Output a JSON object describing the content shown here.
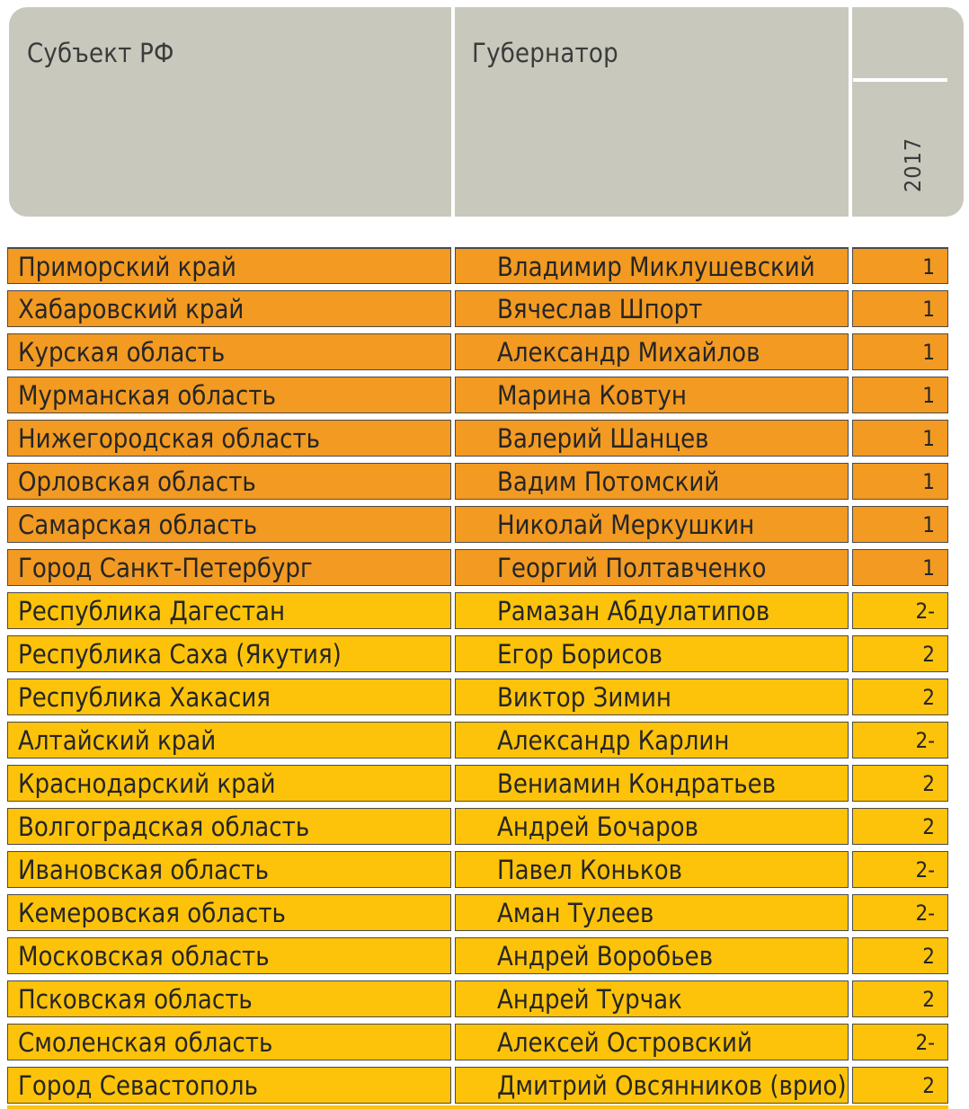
{
  "header": {
    "subject_label": "Субъект РФ",
    "governor_label": "Губернатор",
    "year_label": "2017"
  },
  "colors": {
    "header_bg": "#c8c9bc",
    "group1": "#f29a22",
    "group2": "#fdc30a"
  },
  "rows": [
    {
      "subject": "Приморский край",
      "governor": "Владимир Миклушевский",
      "score": "1",
      "group": "orange"
    },
    {
      "subject": "Хабаровский край",
      "governor": "Вячеслав Шпорт",
      "score": "1",
      "group": "orange"
    },
    {
      "subject": "Курская область",
      "governor": "Александр Михайлов",
      "score": "1",
      "group": "orange"
    },
    {
      "subject": "Мурманская область",
      "governor": "Марина Ковтун",
      "score": "1",
      "group": "orange"
    },
    {
      "subject": "Нижегородская область",
      "governor": "Валерий Шанцев",
      "score": "1",
      "group": "orange"
    },
    {
      "subject": "Орловская область",
      "governor": "Вадим Потомский",
      "score": "1",
      "group": "orange"
    },
    {
      "subject": "Самарская область",
      "governor": "Николай Меркушкин",
      "score": "1",
      "group": "orange"
    },
    {
      "subject": "Город Санкт-Петербург",
      "governor": "Георгий Полтавченко",
      "score": "1",
      "group": "orange"
    },
    {
      "subject": "Республика Дагестан",
      "governor": "Рамазан Абдулатипов",
      "score": "2-",
      "group": "yellow"
    },
    {
      "subject": "Республика Саха (Якутия)",
      "governor": "Егор Борисов",
      "score": "2",
      "group": "yellow"
    },
    {
      "subject": "Республика Хакасия",
      "governor": "Виктор Зимин",
      "score": "2",
      "group": "yellow"
    },
    {
      "subject": "Алтайский край",
      "governor": "Александр Карлин",
      "score": "2-",
      "group": "yellow"
    },
    {
      "subject": "Краснодарский край",
      "governor": "Вениамин Кондратьев",
      "score": "2",
      "group": "yellow"
    },
    {
      "subject": "Волгоградская область",
      "governor": "Андрей Бочаров",
      "score": "2",
      "group": "yellow"
    },
    {
      "subject": "Ивановская область",
      "governor": "Павел Коньков",
      "score": "2-",
      "group": "yellow"
    },
    {
      "subject": "Кемеровская область",
      "governor": "Аман Тулеев",
      "score": "2-",
      "group": "yellow"
    },
    {
      "subject": "Московская область",
      "governor": "Андрей Воробьев",
      "score": "2",
      "group": "yellow"
    },
    {
      "subject": "Псковская область",
      "governor": "Андрей Турчак",
      "score": "2",
      "group": "yellow"
    },
    {
      "subject": "Смоленская область",
      "governor": "Алексей Островский",
      "score": "2-",
      "group": "yellow"
    },
    {
      "subject": "Город Севастополь",
      "governor": "Дмитрий Овсянников (врио)",
      "score": "2",
      "group": "yellow"
    }
  ]
}
